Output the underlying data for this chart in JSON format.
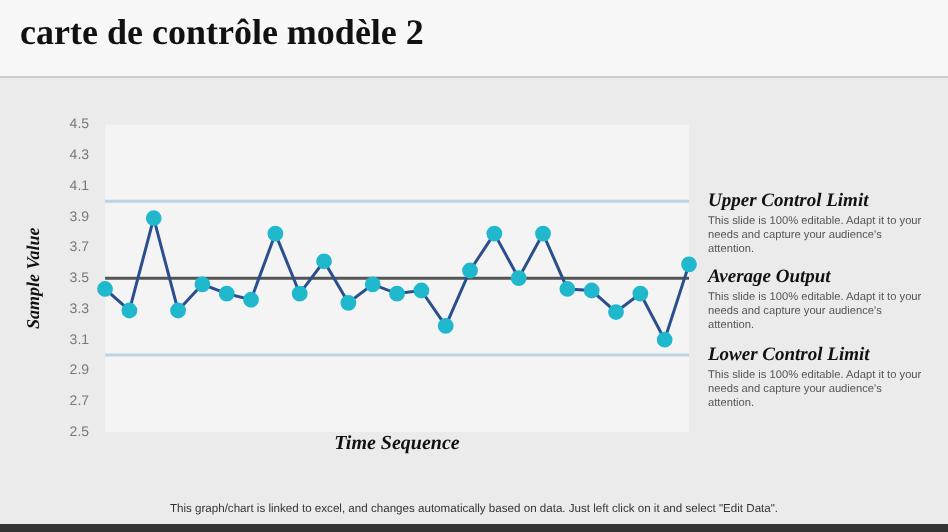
{
  "chart_data": {
    "type": "line",
    "title": "carte de contrôle modèle 2",
    "xlabel": "Time Sequence",
    "ylabel": "Sample Value",
    "categories": [
      null,
      null,
      null,
      null,
      null,
      null,
      null,
      null,
      null,
      null,
      null,
      null,
      null,
      null,
      null,
      null,
      null,
      null,
      null,
      null,
      null,
      null,
      null,
      null,
      null
    ],
    "series": [
      {
        "color": "#2b4f8c",
        "values": [
          3.43,
          3.29,
          3.89,
          3.29,
          3.46,
          3.4,
          3.36,
          3.79,
          3.4,
          3.61,
          3.34,
          3.46,
          3.4,
          3.42,
          3.19,
          3.55,
          3.79,
          3.5,
          3.79,
          3.43,
          3.42,
          3.28,
          3.4,
          3.1,
          3.59
        ]
      }
    ],
    "marker": "circle",
    "ylim": [
      2.5,
      4.5
    ],
    "yticks": [
      2.5,
      2.7,
      2.9,
      3.1,
      3.3,
      3.5,
      3.7,
      3.9,
      4.1,
      4.3,
      4.5
    ],
    "tick_labels": "y",
    "grid": false,
    "legend": false,
    "ref_lines": [
      {
        "axis": "y",
        "value": 4.0,
        "label": "Upper Control Limit",
        "color": "#bcd3e3"
      },
      {
        "axis": "y",
        "value": 3.5,
        "label": "Average Output",
        "color": "#555555"
      },
      {
        "axis": "y",
        "value": 3.0,
        "label": "Lower Control Limit",
        "color": "#bcd3e3"
      }
    ],
    "annotations": [
      "This slide is 100% editable. Adapt it to your needs and capture your audience's attention.",
      "This slide is 100% editable. Adapt it to your needs and capture your audience's attention.",
      "This slide is 100% editable. Adapt it to your needs and capture your audience's attention.",
      "This graph/chart is linked to excel, and changes automatically based on data. Just left click on it and select \"Edit Data\"."
    ]
  }
}
